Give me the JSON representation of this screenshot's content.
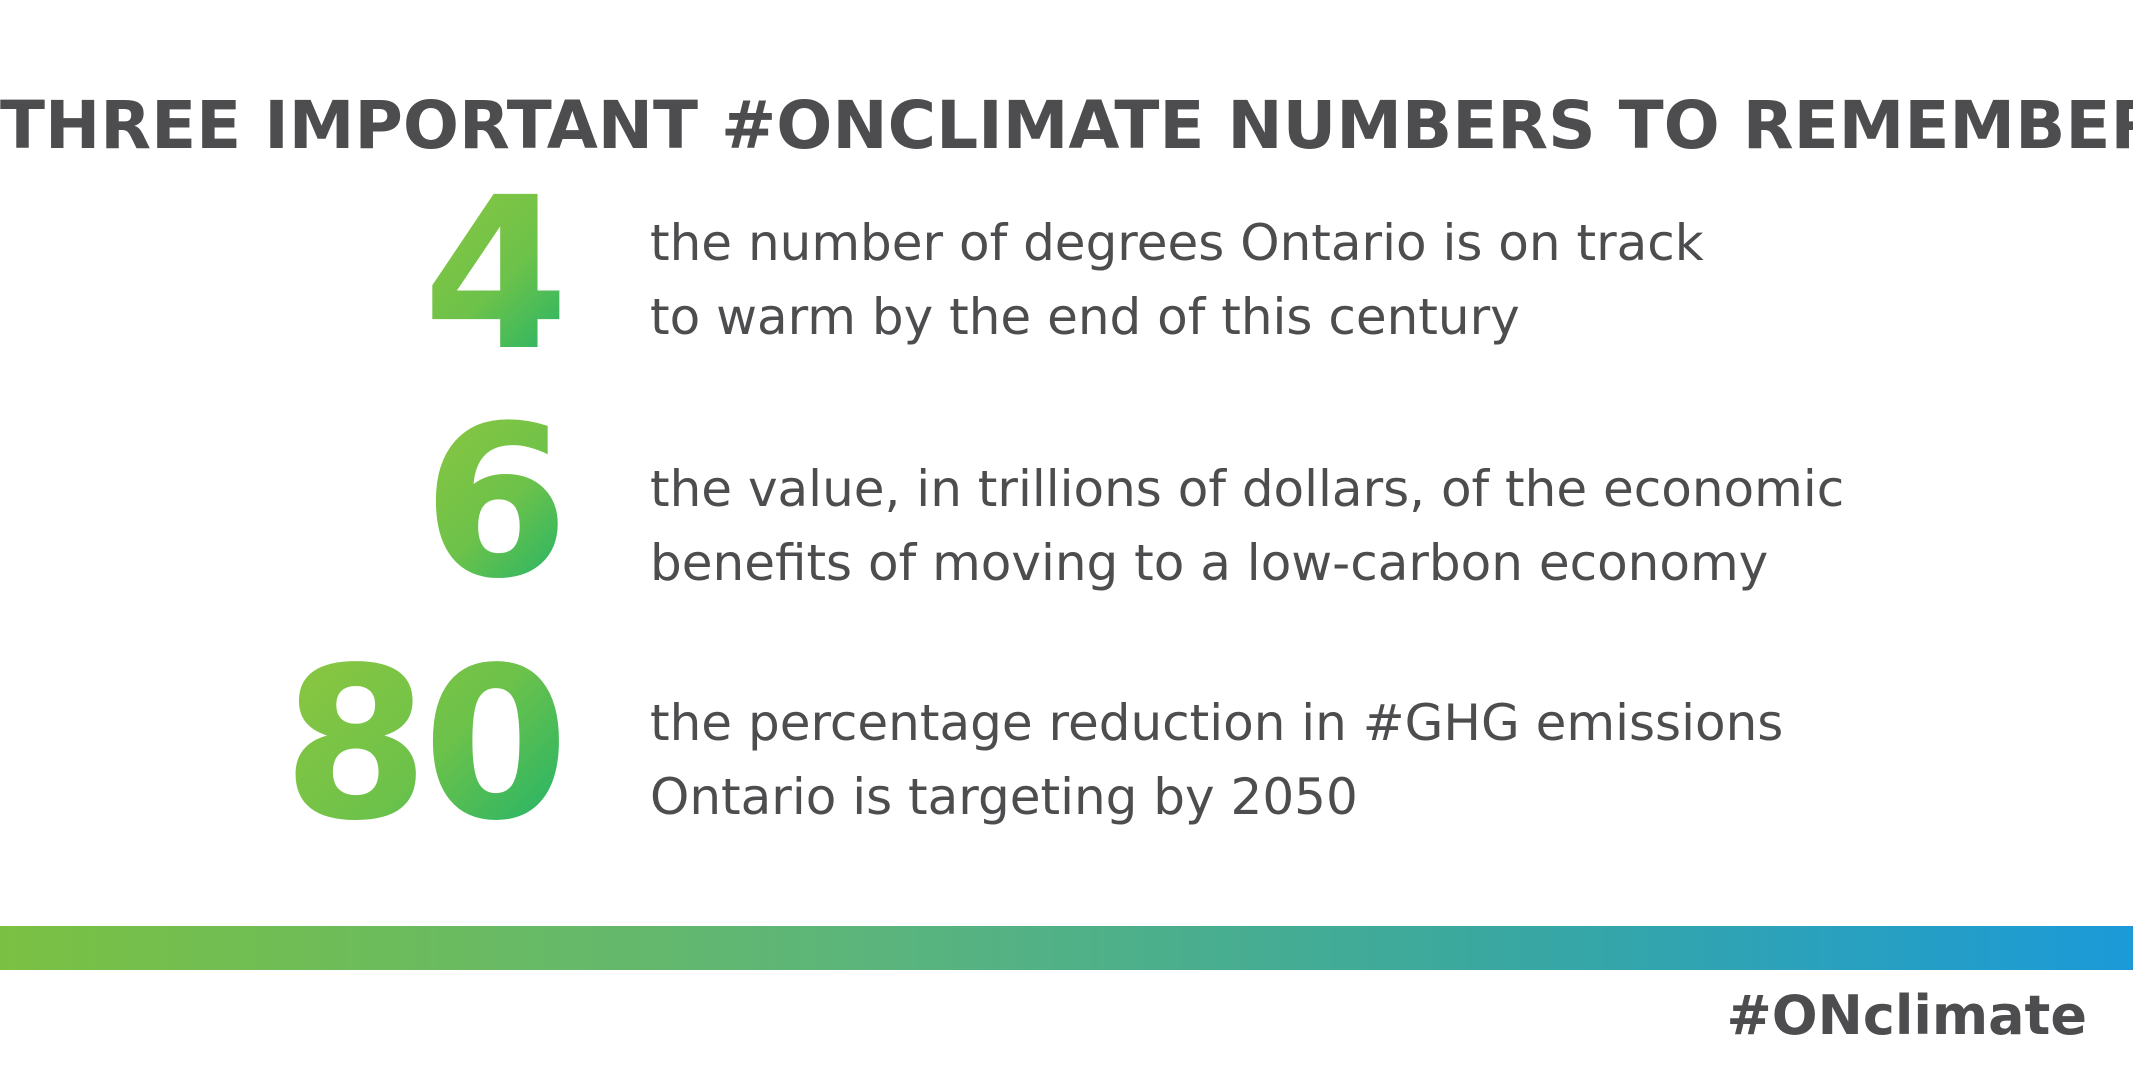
{
  "title": "THREE IMPORTANT #ONCLIMATE NUMBERS TO REMEMBER",
  "stats": [
    {
      "number": "4",
      "line1": "the number of degrees Ontario is on track",
      "line2": "to warm by the end of this century"
    },
    {
      "number": "6",
      "line1": "the value, in trillions of dollars, of the economic",
      "line2": "benefits of moving to a low-carbon economy"
    },
    {
      "number": "80",
      "line1": "the percentage reduction in #GHG emissions",
      "line2": "Ontario is targeting by 2050"
    }
  ],
  "footer": {
    "hashtag": "#ONclimate"
  },
  "colors": {
    "text": "#4d4d4f",
    "number_gradient_start": "#8dc63f",
    "number_gradient_end": "#1fb36a",
    "bar_gradient_start": "#7ac143",
    "bar_gradient_end": "#1b9ad8"
  }
}
